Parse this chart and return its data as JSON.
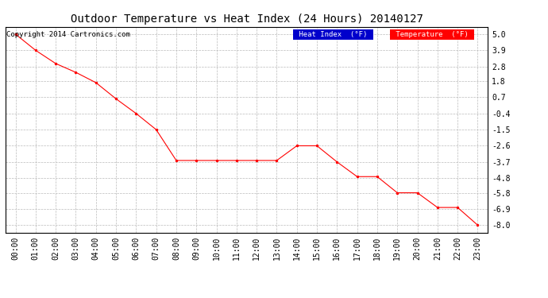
{
  "title": "Outdoor Temperature vs Heat Index (24 Hours) 20140127",
  "copyright": "Copyright 2014 Cartronics.com",
  "x_labels": [
    "00:00",
    "01:00",
    "02:00",
    "03:00",
    "04:00",
    "05:00",
    "06:00",
    "07:00",
    "08:00",
    "09:00",
    "10:00",
    "11:00",
    "12:00",
    "13:00",
    "14:00",
    "15:00",
    "16:00",
    "17:00",
    "18:00",
    "19:00",
    "20:00",
    "21:00",
    "22:00",
    "23:00"
  ],
  "temperature": [
    5.0,
    3.9,
    3.0,
    2.4,
    1.7,
    0.6,
    -0.4,
    -1.5,
    -3.6,
    -3.6,
    -3.6,
    -3.6,
    -3.6,
    -3.6,
    -2.6,
    -2.6,
    -3.7,
    -4.7,
    -4.7,
    -5.8,
    -5.8,
    -6.8,
    -6.8,
    -8.0
  ],
  "ylim": [
    -8.5,
    5.5
  ],
  "yticks": [
    5.0,
    3.9,
    2.8,
    1.8,
    0.7,
    -0.4,
    -1.5,
    -2.6,
    -3.7,
    -4.8,
    -5.8,
    -6.9,
    -8.0
  ],
  "temp_color": "#ff0000",
  "heat_index_color": "#ff0000",
  "bg_color": "#ffffff",
  "grid_color": "#bbbbbb",
  "legend_heat_bg": "#0000cc",
  "legend_temp_bg": "#ff0000",
  "legend_text_color": "#ffffff",
  "title_fontsize": 10,
  "axis_fontsize": 7,
  "copyright_fontsize": 6.5
}
